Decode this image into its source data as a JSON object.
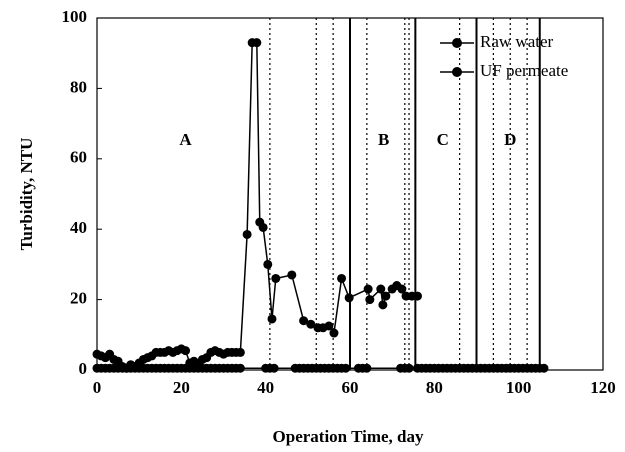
{
  "chart_data": {
    "type": "line",
    "xlabel": "Operation Time, day",
    "ylabel": "Turbidity, NTU",
    "xlim": [
      0,
      120
    ],
    "xticks": [
      0,
      20,
      40,
      60,
      80,
      100,
      120
    ],
    "ylim": [
      0,
      100
    ],
    "yticks": [
      0,
      20,
      40,
      60,
      80,
      100
    ],
    "grid": false,
    "legend": "upper right",
    "series": [
      {
        "name": "Raw water",
        "color": "#000000",
        "x": [
          0,
          1,
          2,
          3,
          4,
          5,
          6,
          7,
          8,
          9,
          10,
          11,
          12,
          13,
          14,
          15,
          16,
          17,
          18,
          19,
          20,
          21,
          22,
          23,
          24,
          25,
          26,
          27,
          28,
          29,
          30,
          31,
          32,
          33,
          34,
          35.6,
          36.8,
          37.9,
          38.6,
          39.4,
          40.5,
          41.5,
          42.4,
          46.2,
          49,
          50.7,
          52.4,
          53.6,
          55,
          56.2,
          58,
          59.8,
          64.3,
          64.7,
          67.3,
          67.8,
          68.5,
          70,
          71.1,
          72.3,
          73.3,
          74.7,
          76
        ],
        "values": [
          4.5,
          4,
          3.5,
          4.5,
          3,
          2.5,
          1,
          0.5,
          1.5,
          1,
          2,
          3,
          3.5,
          4,
          5,
          5,
          5,
          5.5,
          5,
          5.5,
          6,
          5.5,
          2,
          2.5,
          1.5,
          3,
          3.5,
          5,
          5.5,
          5,
          4.5,
          5,
          5,
          5,
          5,
          38.5,
          93,
          93,
          42,
          40.5,
          30,
          14.5,
          26,
          27,
          14,
          13,
          12,
          12,
          12.5,
          10.5,
          26,
          20.5,
          23,
          20,
          23,
          18.5,
          21,
          23,
          24,
          23,
          21,
          21,
          21
        ]
      },
      {
        "name": "UF permeate",
        "color": "#000000",
        "x": [
          0,
          1,
          2,
          3,
          4,
          5,
          6,
          7,
          8,
          9,
          10,
          11,
          12,
          13,
          14,
          15,
          16,
          17,
          18,
          19,
          20,
          21,
          22,
          23,
          24,
          25,
          26,
          27,
          28,
          29,
          30,
          31,
          32,
          33,
          34,
          40,
          41,
          42,
          47,
          48,
          49,
          50,
          51,
          52,
          53,
          54,
          55,
          56,
          57,
          58,
          59,
          62,
          63,
          64,
          72,
          73,
          74,
          76,
          77,
          78,
          79,
          80,
          81,
          82,
          83,
          84,
          85,
          86,
          87,
          88,
          89,
          90,
          91,
          92,
          93,
          94,
          95,
          96,
          97,
          98,
          99,
          100,
          101,
          102,
          103,
          104,
          105,
          106
        ],
        "values": [
          0.5,
          0.5,
          0.5,
          0.5,
          0.5,
          0.5,
          0.5,
          0.5,
          0.5,
          0.5,
          0.5,
          0.5,
          0.5,
          0.5,
          0.5,
          0.5,
          0.5,
          0.5,
          0.5,
          0.5,
          0.5,
          0.5,
          0.5,
          0.5,
          0.5,
          0.5,
          0.5,
          0.5,
          0.5,
          0.5,
          0.5,
          0.5,
          0.5,
          0.5,
          0.5,
          0.5,
          0.5,
          0.5,
          0.5,
          0.5,
          0.5,
          0.5,
          0.5,
          0.5,
          0.5,
          0.5,
          0.5,
          0.5,
          0.5,
          0.5,
          0.5,
          0.5,
          0.5,
          0.5,
          0.5,
          0.5,
          0.5,
          0.5,
          0.5,
          0.5,
          0.5,
          0.5,
          0.5,
          0.5,
          0.5,
          0.5,
          0.5,
          0.5,
          0.5,
          0.5,
          0.5,
          0.5,
          0.5,
          0.5,
          0.5,
          0.5,
          0.5,
          0.5,
          0.5,
          0.5,
          0.5,
          0.5,
          0.5,
          0.5,
          0.5,
          0.5,
          0.5,
          0.5
        ]
      }
    ],
    "reference_lines": [
      {
        "x": 41,
        "style": "dotted"
      },
      {
        "x": 52,
        "style": "dotted"
      },
      {
        "x": 56,
        "style": "dotted"
      },
      {
        "x": 60,
        "style": "solid"
      },
      {
        "x": 64,
        "style": "dotted"
      },
      {
        "x": 73,
        "style": "dotted"
      },
      {
        "x": 74,
        "style": "dotted"
      },
      {
        "x": 75.5,
        "style": "solid"
      },
      {
        "x": 86,
        "style": "dotted"
      },
      {
        "x": 90,
        "style": "solid"
      },
      {
        "x": 94,
        "style": "dotted"
      },
      {
        "x": 98,
        "style": "dotted"
      },
      {
        "x": 102,
        "style": "dotted"
      },
      {
        "x": 105,
        "style": "solid"
      }
    ],
    "annotations": [
      {
        "text": "A",
        "x": 21,
        "y": 65
      },
      {
        "text": "B",
        "x": 68,
        "y": 65
      },
      {
        "text": "C",
        "x": 82,
        "y": 65
      },
      {
        "text": "D",
        "x": 98,
        "y": 65
      }
    ]
  }
}
